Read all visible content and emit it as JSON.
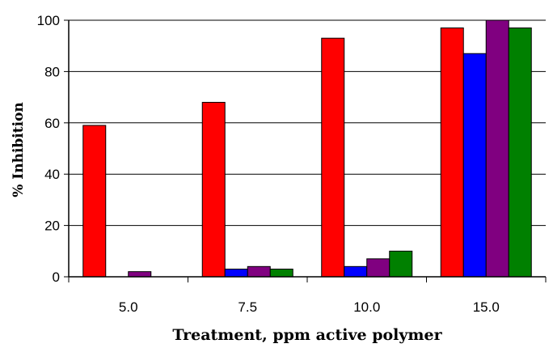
{
  "chart_data": {
    "type": "bar",
    "title": "",
    "xlabel": "Treatment, ppm active polymer",
    "ylabel": "% Inhibition",
    "categories": [
      "5.0",
      "7.5",
      "10.0",
      "15.0"
    ],
    "ylim": [
      0,
      100
    ],
    "yticks": [
      "0",
      "20",
      "40",
      "60",
      "80",
      "100"
    ],
    "grid": "horizontal",
    "legend": "none",
    "series": [
      {
        "color": "#ff0000",
        "values": [
          59,
          68,
          93,
          97
        ]
      },
      {
        "color": "#0000ff",
        "values": [
          0,
          3,
          4,
          87
        ]
      },
      {
        "color": "#800080",
        "values": [
          2,
          4,
          7,
          100
        ]
      },
      {
        "color": "#008000",
        "values": [
          0,
          3,
          10,
          97
        ]
      }
    ]
  }
}
